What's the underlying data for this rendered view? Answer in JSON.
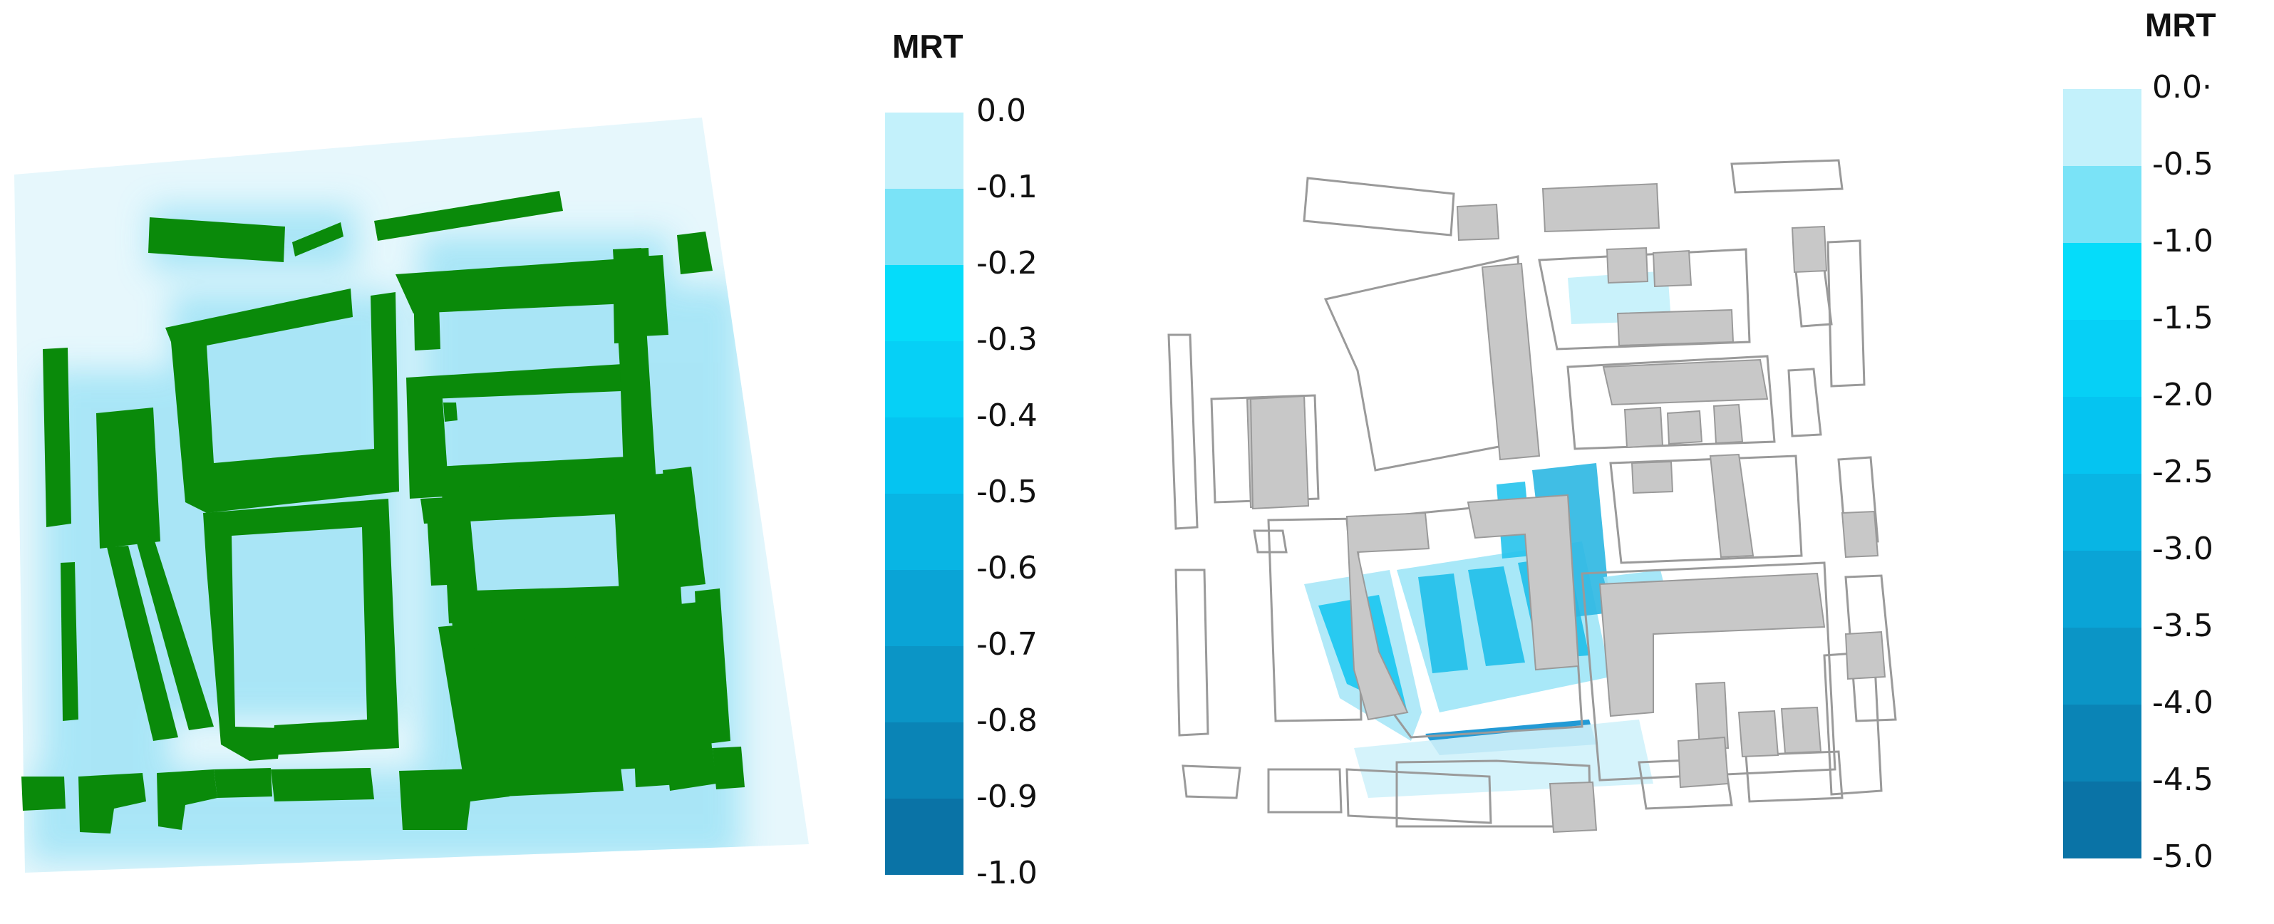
{
  "panels": [
    {
      "name": "left-map",
      "legend": {
        "title": "MRT",
        "labels": [
          "0.0",
          "-0.1",
          "-0.2",
          "-0.3",
          "-0.4",
          "-0.5",
          "-0.6",
          "-0.7",
          "-0.8",
          "-0.9",
          "-1.0"
        ],
        "colors": [
          "#c3f1fb",
          "#7ae3f7",
          "#05dcfa",
          "#06d0f6",
          "#05c4f1",
          "#08b5e4",
          "#0aa4d6",
          "#0b95c6",
          "#0a84b6",
          "#0a73a6"
        ]
      },
      "colors": {
        "building": "#0a8a0a",
        "background_tint": "#d6f3fb"
      }
    },
    {
      "name": "right-map",
      "legend": {
        "title": "MRT",
        "labels": [
          "0.0·",
          "-0.5",
          "-1.0",
          "-1.5",
          "-2.0",
          "-2.5",
          "-3.0",
          "-3.5",
          "-4.0",
          "-4.5",
          "-5.0"
        ],
        "colors": [
          "#c3f1fb",
          "#7ae3f7",
          "#05dcfa",
          "#06d0f6",
          "#05c4f1",
          "#08b5e4",
          "#0aa4d6",
          "#0b95c6",
          "#0a84b6",
          "#0a73a6"
        ]
      },
      "colors": {
        "building_changed": "#c8c8c8",
        "building_outline": "#9a9a9a",
        "difference": "#19c6ef"
      }
    }
  ]
}
